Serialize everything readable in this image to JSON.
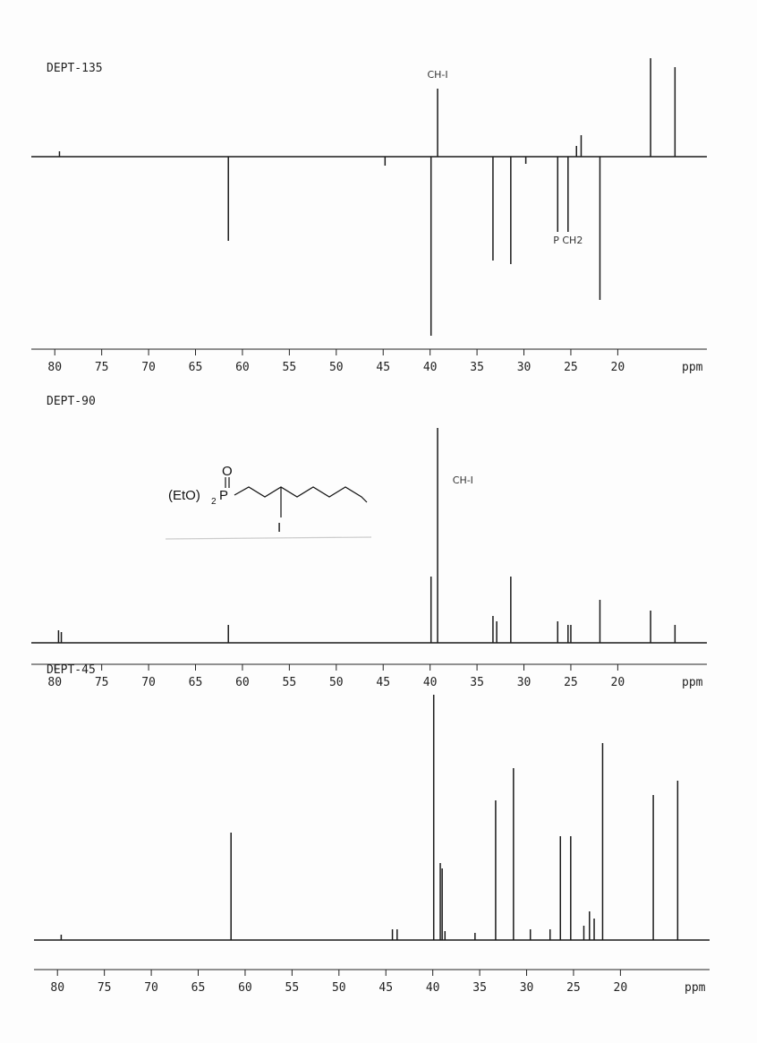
{
  "chart_data": [
    {
      "type": "stem",
      "title": "DEPT-135",
      "xlabel": "ppm",
      "color": "#1a1a1a",
      "xlim": [
        82.5,
        10.5
      ],
      "xticks": [
        80,
        75,
        70,
        65,
        60,
        55,
        50,
        45,
        40,
        35,
        30,
        25,
        20
      ],
      "ylim": [
        -1.05,
        0.6
      ],
      "x": [
        79.5,
        61.5,
        44.8,
        39.9,
        39.2,
        33.3,
        31.4,
        29.8,
        26.4,
        25.3,
        24.4,
        23.9,
        21.9,
        16.5,
        13.9
      ],
      "values": [
        0.03,
        -0.47,
        -0.05,
        -1.0,
        0.38,
        -0.58,
        -0.6,
        -0.04,
        -0.42,
        -0.42,
        0.06,
        0.12,
        -0.8,
        0.55,
        0.5
      ],
      "annotations": [
        {
          "text": "CH-I",
          "x": 39.2
        },
        {
          "text": "P CH2",
          "x": 25.3
        }
      ]
    },
    {
      "type": "stem",
      "title": "DEPT-90",
      "xlabel": "ppm",
      "color": "#1a1a1a",
      "xlim": [
        82.5,
        10.5
      ],
      "xticks": [
        80,
        75,
        70,
        65,
        60,
        55,
        50,
        45,
        40,
        35,
        30,
        25,
        20
      ],
      "ylim": [
        -0.1,
        1.24
      ],
      "x": [
        79.6,
        79.3,
        61.5,
        39.9,
        39.2,
        33.3,
        32.9,
        31.4,
        26.4,
        25.3,
        25.0,
        21.9,
        16.5,
        13.9
      ],
      "values": [
        0.07,
        0.06,
        0.1,
        0.37,
        1.2,
        0.15,
        0.12,
        0.37,
        0.12,
        0.1,
        0.1,
        0.24,
        0.18,
        0.1
      ],
      "annotations": [
        {
          "text": "CH-I",
          "x": 36.5
        }
      ]
    },
    {
      "type": "stem",
      "title": "DEPT-45",
      "xlabel": "ppm",
      "color": "#1a1a1a",
      "xlim": [
        82.5,
        10.5
      ],
      "xticks": [
        80,
        75,
        70,
        65,
        60,
        55,
        50,
        45,
        40,
        35,
        30,
        25,
        20
      ],
      "ylim": [
        -0.1,
        1.4
      ],
      "x": [
        79.6,
        61.5,
        44.3,
        43.8,
        39.9,
        39.2,
        39.0,
        38.7,
        35.5,
        33.3,
        31.4,
        29.6,
        27.5,
        26.4,
        25.3,
        23.9,
        23.3,
        22.8,
        21.9,
        16.5,
        13.9
      ],
      "values": [
        0.03,
        0.6,
        0.06,
        0.06,
        1.37,
        0.43,
        0.4,
        0.05,
        0.04,
        0.78,
        0.96,
        0.06,
        0.06,
        0.58,
        0.58,
        0.08,
        0.16,
        0.12,
        1.1,
        0.81,
        0.89
      ],
      "annotations": []
    }
  ],
  "structure": {
    "substituent": "(EtO)",
    "subscript": "2",
    "phosphorus": "P",
    "oxygen": "O",
    "iodine": "I"
  }
}
